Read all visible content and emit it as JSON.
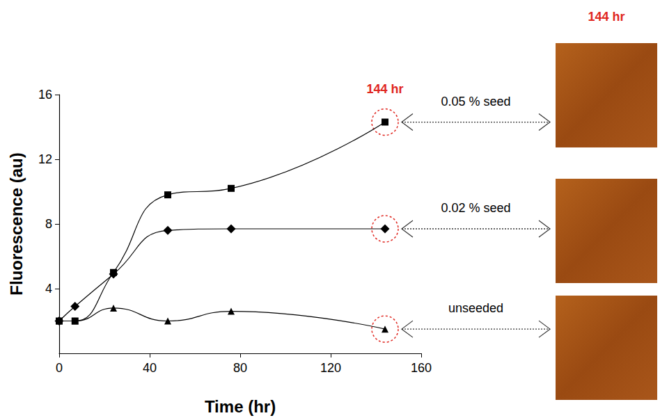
{
  "chart_data": {
    "type": "line",
    "x_label": "Time (hr)",
    "y_label": "Fluorescence (au)",
    "x": [
      0,
      7,
      24,
      48,
      76,
      144
    ],
    "xlim": [
      0,
      160
    ],
    "xticks": [
      0,
      40,
      80,
      120,
      160
    ],
    "ylim": [
      0,
      16
    ],
    "yticks": [
      4,
      8,
      12,
      16
    ],
    "grid": false,
    "series": [
      {
        "name": "0.05 % seed",
        "color": "#000000",
        "marker": "square",
        "values": [
          2,
          2,
          5,
          9.8,
          10.2,
          14.3
        ]
      },
      {
        "name": "0.02 % seed",
        "color": "#000000",
        "marker": "diamond",
        "values": [
          2,
          2.9,
          4.9,
          7.6,
          7.7,
          7.7
        ]
      },
      {
        "name": "unseeded",
        "color": "#000000",
        "marker": "triangle",
        "values": [
          2,
          2,
          2.8,
          2,
          2.6,
          1.5
        ]
      }
    ],
    "annotations": [
      {
        "text": "144 hr",
        "x": 144,
        "color": "#e0261f"
      },
      {
        "text": "144 hr",
        "color": "#e0261f"
      }
    ]
  }
}
